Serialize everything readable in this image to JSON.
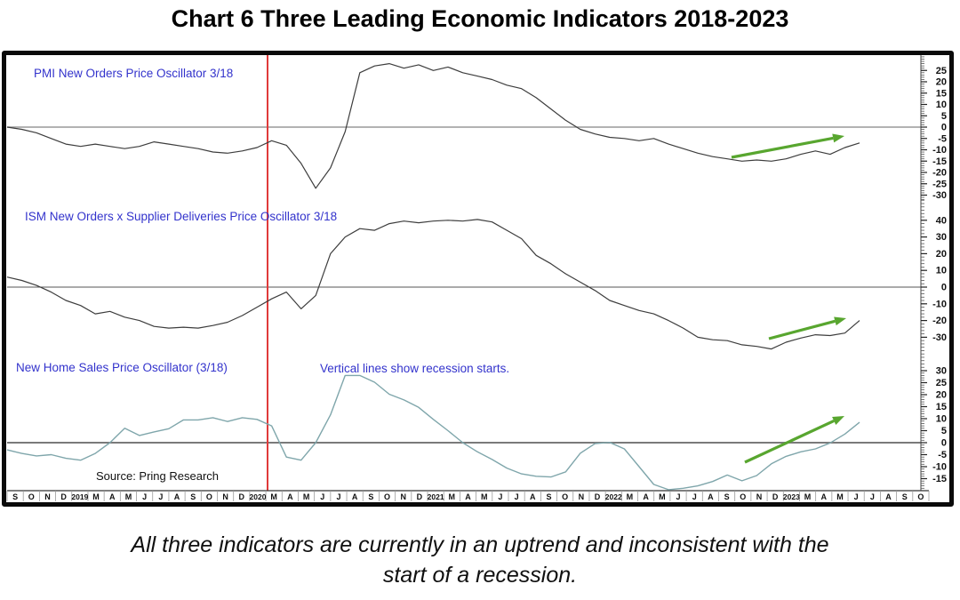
{
  "page": {
    "title": "Chart 6 Three Leading Economic Indicators 2018-2023",
    "caption_line1": "All three indicators are currently in an uptrend and inconsistent with the",
    "caption_line2": "start of a recession."
  },
  "colors": {
    "dark_line": "#3d3d3d",
    "teal_line": "#7fa6ab",
    "zero_line": "#8f8f8f",
    "recession_line": "#e03a3a",
    "trend_arrow": "#58a62f",
    "panel_label_blue": "#3333cc",
    "axis_text": "#111111",
    "frame_border": "#0a0a0a"
  },
  "chart_data": {
    "type": "line",
    "title": "Chart 6 Three Leading Economic Indicators 2018-2023",
    "x_axis": {
      "tick_labels": [
        "S",
        "O",
        "N",
        "D",
        "2019",
        "M",
        "A",
        "M",
        "J",
        "J",
        "A",
        "S",
        "O",
        "N",
        "D",
        "2020",
        "M",
        "A",
        "M",
        "J",
        "J",
        "A",
        "S",
        "O",
        "N",
        "D",
        "2021",
        "M",
        "A",
        "M",
        "J",
        "J",
        "A",
        "S",
        "O",
        "N",
        "D",
        "2022",
        "M",
        "A",
        "M",
        "J",
        "J",
        "A",
        "S",
        "O",
        "N",
        "D",
        "2023",
        "M",
        "A",
        "M",
        "J",
        "J",
        "A",
        "S",
        "O"
      ],
      "range_note": "monthly, Sep 2018 - Oct 2023"
    },
    "recession_line_x_label": "2020 (recession start)",
    "panels": [
      {
        "label": "PMI New Orders Price Oscillator 3/18",
        "y_ticks": [
          25,
          20,
          15,
          10,
          5,
          0,
          -5,
          -10,
          -15,
          -20,
          -25,
          -30
        ],
        "ylim": [
          -32,
          31
        ],
        "values": [
          0,
          -1,
          -2.5,
          -5,
          -7.5,
          -8.5,
          -7.5,
          -8.5,
          -9.5,
          -8.5,
          -6.5,
          -7.5,
          -8.5,
          -9.5,
          -11,
          -11.5,
          -10.5,
          -9,
          -6,
          -8,
          -16,
          -27,
          -18,
          -2,
          24,
          27,
          28,
          26,
          27.5,
          25,
          26.5,
          24,
          22.5,
          21,
          18.5,
          17,
          13,
          8,
          3,
          -1,
          -3,
          -4.5,
          -5,
          -6,
          -5,
          -7.5,
          -9.5,
          -11.5,
          -13,
          -14,
          -15,
          -14.5,
          -15,
          -14,
          -12,
          -10.5,
          -12,
          -9,
          -7
        ],
        "trend_arrow": true
      },
      {
        "label": "ISM New  Orders x Supplier Deliveries Price Oscillator 3/18",
        "y_ticks": [
          40,
          30,
          20,
          10,
          0,
          -10,
          -20,
          -30
        ],
        "ylim": [
          -48,
          52
        ],
        "values": [
          6,
          4,
          1,
          -3,
          -8,
          -11,
          -16,
          -14.5,
          -18,
          -20,
          -23.5,
          -24.5,
          -24,
          -24.5,
          -23,
          -21,
          -17,
          -12,
          -7,
          -3,
          -13,
          -5,
          20,
          30,
          35,
          34,
          38,
          39.5,
          38.5,
          39.5,
          40,
          39.5,
          40.5,
          39,
          34,
          29,
          19,
          14,
          8,
          3,
          -2,
          -8,
          -11,
          -14,
          -16,
          -20,
          -24.5,
          -30,
          -31.5,
          -32,
          -34.5,
          -35.5,
          -37,
          -33,
          -30.5,
          -28.5,
          -29,
          -27.5,
          -20
        ],
        "trend_arrow": true
      },
      {
        "label": "New Home Sales Price Oscillator (3/18)",
        "y_ticks": [
          30,
          25,
          20,
          15,
          10,
          5,
          0,
          -5,
          -10,
          -15
        ],
        "ylim": [
          -20,
          31
        ],
        "values": [
          -3,
          -4.5,
          -5.5,
          -5,
          -6.5,
          -7.3,
          -4.5,
          0,
          6,
          3,
          4.5,
          5.8,
          9.5,
          9.5,
          10.4,
          8.8,
          10.4,
          9.7,
          7,
          -6,
          -7.3,
          0,
          11.6,
          28,
          28,
          25.2,
          20.2,
          17.8,
          14.7,
          9.7,
          5,
          0,
          -3.8,
          -7,
          -10.6,
          -13,
          -14,
          -14.3,
          -12.2,
          -4.4,
          -0.4,
          0.1,
          -2.6,
          -10,
          -17.4,
          -19.6,
          -19,
          -18,
          -16.2,
          -13.5,
          -15.9,
          -13.7,
          -8.8,
          -5.7,
          -3.8,
          -2.6,
          -0.1,
          3.6,
          8.5
        ],
        "trend_arrow": true
      }
    ],
    "annotations": {
      "recession_note": "Vertical lines show recession starts.",
      "source": "Source: Pring Research"
    },
    "legend_position": "none",
    "grid": "zero-lines-only"
  }
}
